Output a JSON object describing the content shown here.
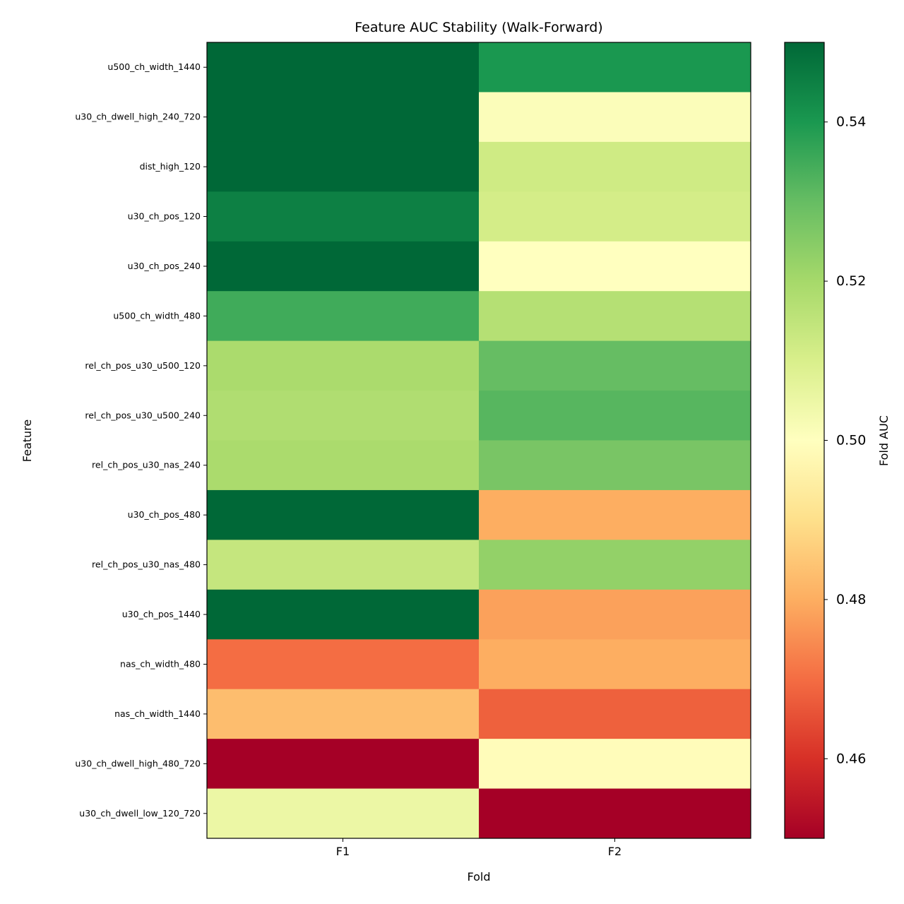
{
  "chart_data": {
    "type": "heatmap",
    "title": "Feature AUC Stability (Walk-Forward)",
    "xlabel": "Fold",
    "ylabel": "Feature",
    "colorbar_label": "Fold AUC",
    "colormap": "RdYlGn",
    "colormap_stops": [
      "#a50026",
      "#d73027",
      "#f46d43",
      "#fdae61",
      "#fee08b",
      "#ffffbf",
      "#d9ef8b",
      "#a6d96a",
      "#66bd63",
      "#1a9850",
      "#006837"
    ],
    "vmin": 0.45,
    "vmax": 0.55,
    "colorbar_ticks": [
      "0.46",
      "0.48",
      "0.50",
      "0.52",
      "0.54"
    ],
    "columns": [
      "F1",
      "F2"
    ],
    "rows": [
      "u500_ch_width_1440",
      "u30_ch_dwell_high_240_720",
      "dist_high_120",
      "u30_ch_pos_120",
      "u30_ch_pos_240",
      "u500_ch_width_480",
      "rel_ch_pos_u30_u500_120",
      "rel_ch_pos_u30_u500_240",
      "rel_ch_pos_u30_nas_240",
      "u30_ch_pos_480",
      "rel_ch_pos_u30_nas_480",
      "u30_ch_pos_1440",
      "nas_ch_width_480",
      "nas_ch_width_1440",
      "u30_ch_dwell_high_480_720",
      "u30_ch_dwell_low_120_720"
    ],
    "values": [
      [
        0.55,
        0.54
      ],
      [
        0.55,
        0.501
      ],
      [
        0.55,
        0.512
      ],
      [
        0.545,
        0.511
      ],
      [
        0.55,
        0.5
      ],
      [
        0.535,
        0.517
      ],
      [
        0.519,
        0.53
      ],
      [
        0.518,
        0.532
      ],
      [
        0.519,
        0.527
      ],
      [
        0.55,
        0.48
      ],
      [
        0.514,
        0.523
      ],
      [
        0.55,
        0.478
      ],
      [
        0.47,
        0.48
      ],
      [
        0.483,
        0.468
      ],
      [
        0.45,
        0.499
      ],
      [
        0.505,
        0.45
      ]
    ]
  }
}
